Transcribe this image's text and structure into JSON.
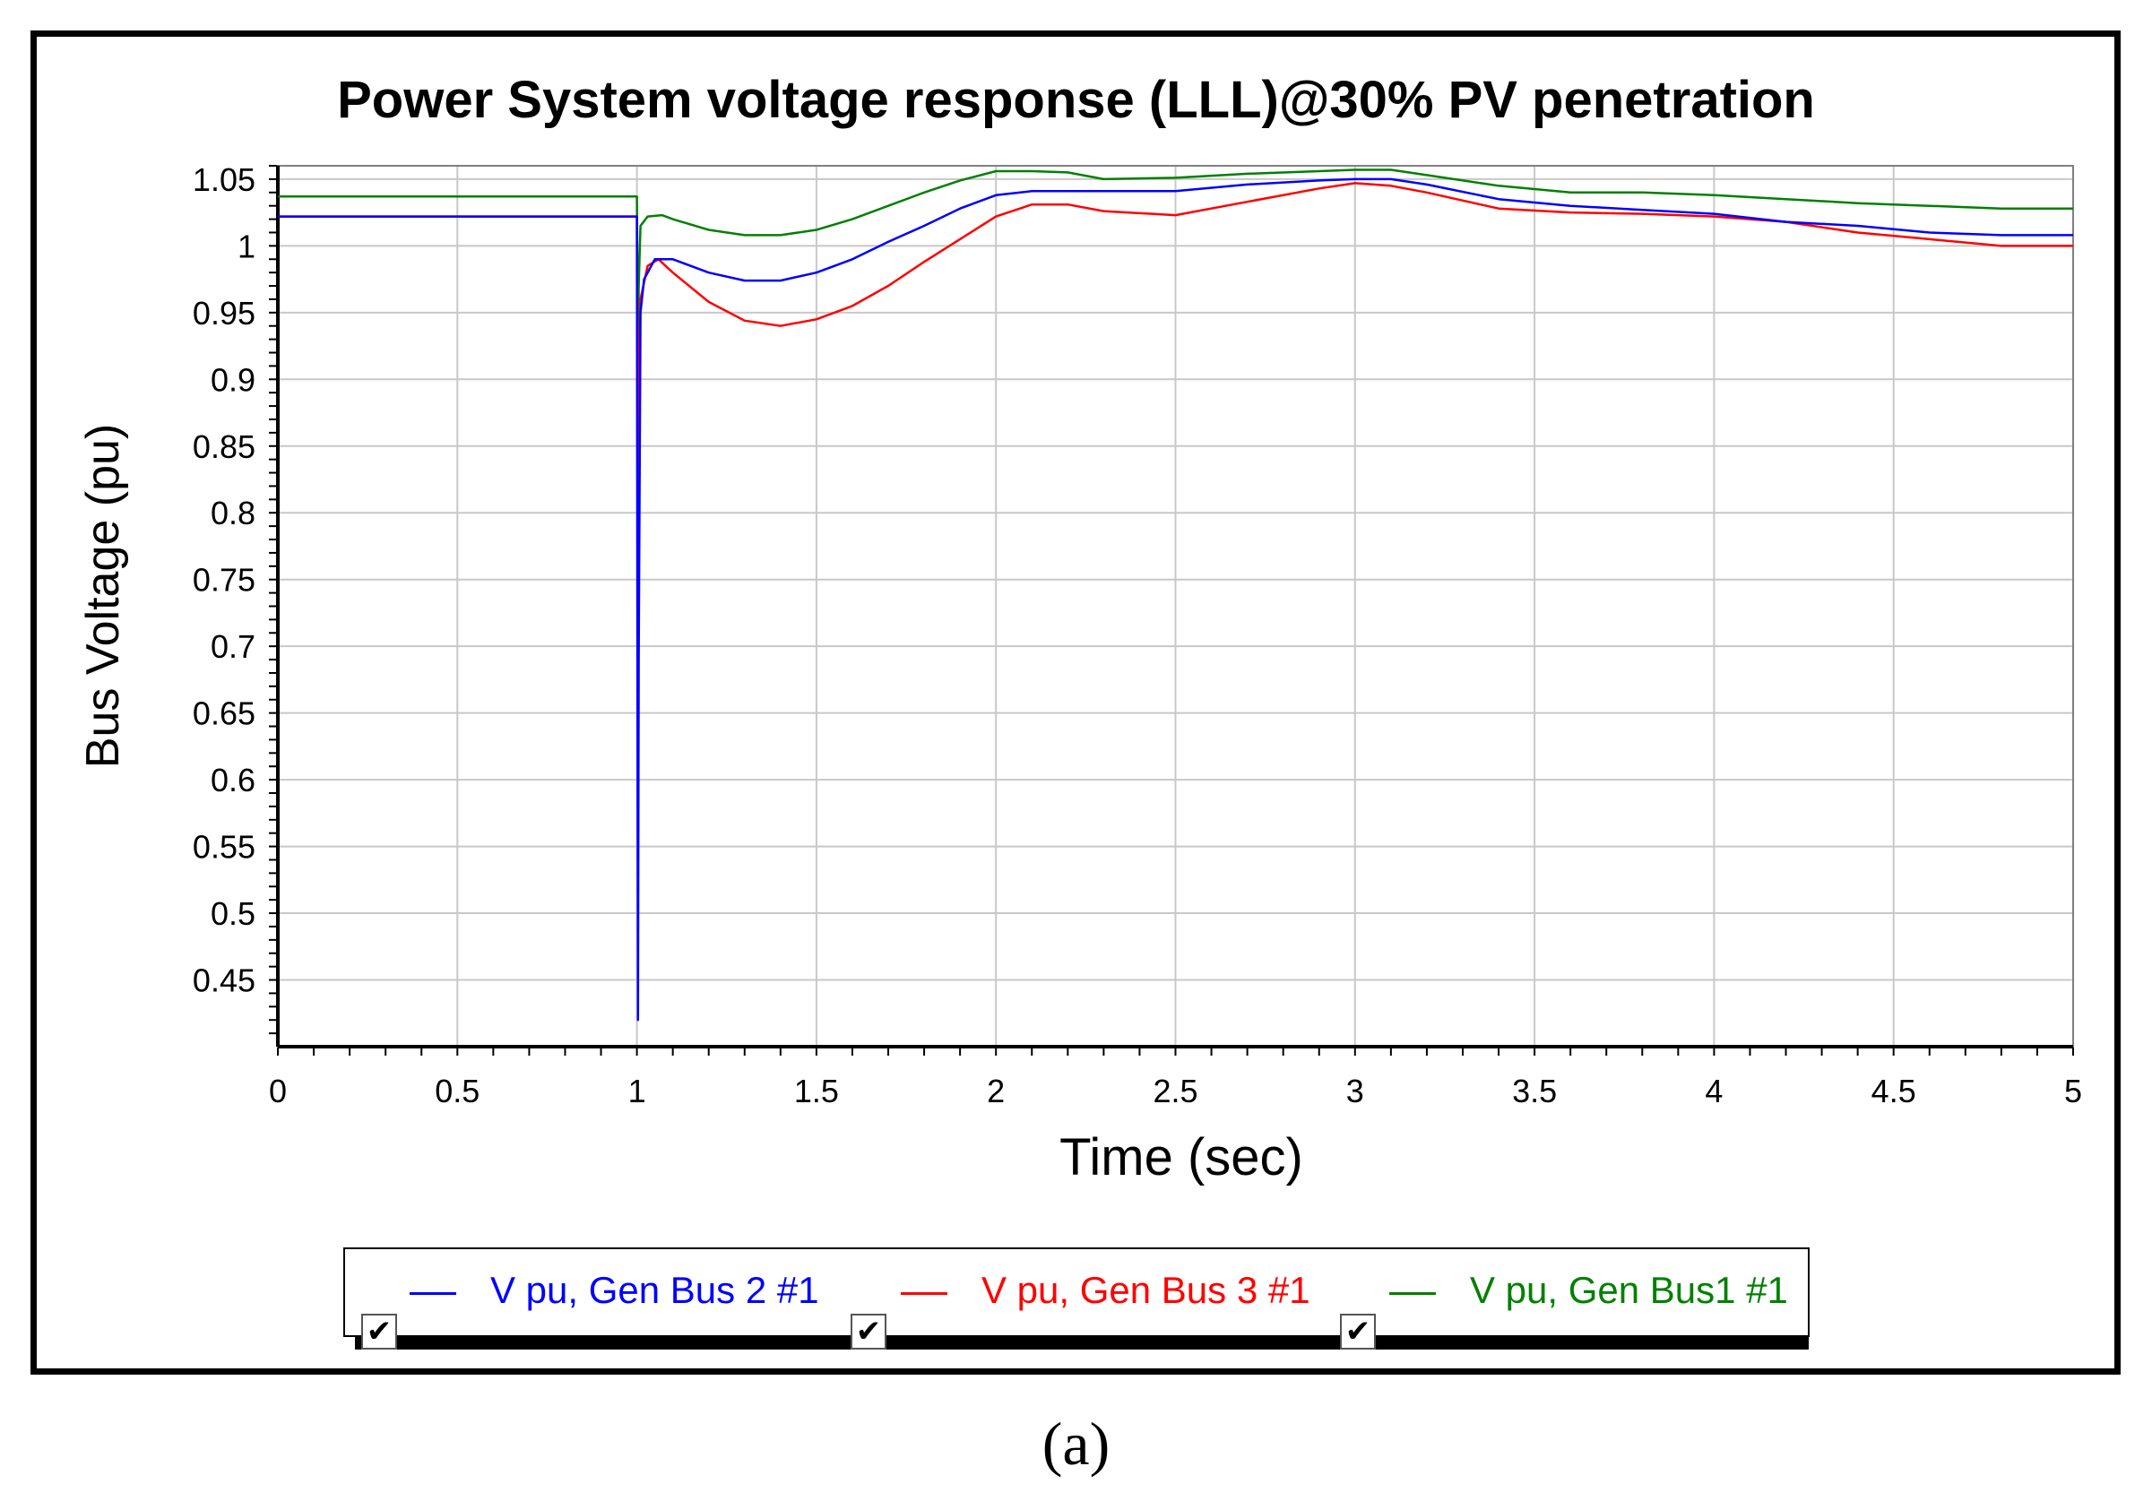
{
  "chart_data": {
    "type": "line",
    "title": "Power System voltage response (LLL)@30% PV penetration",
    "xlabel": "Time (sec)",
    "ylabel": "Bus Voltage (pu)",
    "xlim": [
      0,
      5
    ],
    "ylim": [
      0.4,
      1.06
    ],
    "xticks": [
      "0",
      "0.5",
      "1",
      "1.5",
      "2",
      "2.5",
      "3",
      "3.5",
      "4",
      "4.5",
      "5"
    ],
    "yticks": [
      "1.05",
      "1",
      "0.95",
      "0.9",
      "0.85",
      "0.8",
      "0.75",
      "0.7",
      "0.65",
      "0.6",
      "0.55",
      "0.5",
      "0.45"
    ],
    "grid": true,
    "legend_position": "bottom",
    "series": [
      {
        "name": "V pu, Gen Bus 2 #1",
        "color": "#0000ff",
        "x": [
          0,
          0.99,
          1.0,
          1.003,
          1.005,
          1.01,
          1.02,
          1.05,
          1.1,
          1.2,
          1.3,
          1.4,
          1.5,
          1.6,
          1.7,
          1.8,
          1.9,
          2.0,
          2.1,
          2.2,
          2.3,
          2.5,
          2.7,
          2.9,
          3.0,
          3.1,
          3.2,
          3.4,
          3.6,
          3.8,
          4.0,
          4.2,
          4.4,
          4.6,
          4.8,
          5.0
        ],
        "y": [
          1.022,
          1.022,
          1.022,
          0.42,
          0.69,
          0.95,
          0.975,
          0.99,
          0.99,
          0.98,
          0.974,
          0.974,
          0.98,
          0.99,
          1.003,
          1.015,
          1.028,
          1.038,
          1.041,
          1.041,
          1.041,
          1.041,
          1.046,
          1.049,
          1.05,
          1.05,
          1.046,
          1.035,
          1.03,
          1.027,
          1.024,
          1.018,
          1.015,
          1.01,
          1.008,
          1.008
        ]
      },
      {
        "name": "V pu, Gen Bus 3 #1",
        "color": "#ff0000",
        "x": [
          0,
          0.99,
          1.0,
          1.004,
          1.006,
          1.01,
          1.03,
          1.06,
          1.1,
          1.2,
          1.3,
          1.4,
          1.5,
          1.6,
          1.7,
          1.8,
          1.9,
          2.0,
          2.1,
          2.2,
          2.3,
          2.5,
          2.7,
          2.9,
          3.0,
          3.1,
          3.2,
          3.4,
          3.6,
          3.8,
          4.0,
          4.2,
          4.4,
          4.6,
          4.8,
          5.0
        ],
        "y": [
          1.022,
          1.022,
          1.022,
          0.69,
          0.905,
          0.96,
          0.985,
          0.99,
          0.98,
          0.958,
          0.944,
          0.94,
          0.945,
          0.955,
          0.97,
          0.988,
          1.005,
          1.022,
          1.031,
          1.031,
          1.026,
          1.023,
          1.033,
          1.043,
          1.047,
          1.045,
          1.04,
          1.028,
          1.025,
          1.024,
          1.022,
          1.018,
          1.01,
          1.005,
          1.0,
          1.0
        ]
      },
      {
        "name": "V pu, Gen Bus1 #1",
        "color": "#008000",
        "x": [
          0,
          0.99,
          1.0,
          1.003,
          1.005,
          1.01,
          1.03,
          1.07,
          1.1,
          1.2,
          1.3,
          1.4,
          1.5,
          1.6,
          1.7,
          1.8,
          1.9,
          2.0,
          2.1,
          2.2,
          2.3,
          2.5,
          2.7,
          2.9,
          3.0,
          3.1,
          3.2,
          3.4,
          3.6,
          3.8,
          4.0,
          4.2,
          4.4,
          4.6,
          4.8,
          5.0
        ],
        "y": [
          1.037,
          1.037,
          1.037,
          0.91,
          0.97,
          1.015,
          1.022,
          1.023,
          1.02,
          1.012,
          1.008,
          1.008,
          1.012,
          1.02,
          1.03,
          1.04,
          1.049,
          1.056,
          1.056,
          1.055,
          1.05,
          1.051,
          1.054,
          1.056,
          1.057,
          1.057,
          1.053,
          1.045,
          1.04,
          1.04,
          1.038,
          1.035,
          1.032,
          1.03,
          1.028,
          1.028
        ]
      }
    ]
  },
  "legend": {
    "entries": [
      {
        "label": "V pu, Gen Bus 2 #1",
        "color": "#0000ff",
        "checked": true
      },
      {
        "label": "V pu, Gen Bus 3 #1",
        "color": "#ff0000",
        "checked": true
      },
      {
        "label": "V pu, Gen Bus1 #1",
        "color": "#008000",
        "checked": true
      }
    ],
    "check_glyph": "✔"
  },
  "caption": "(a)"
}
